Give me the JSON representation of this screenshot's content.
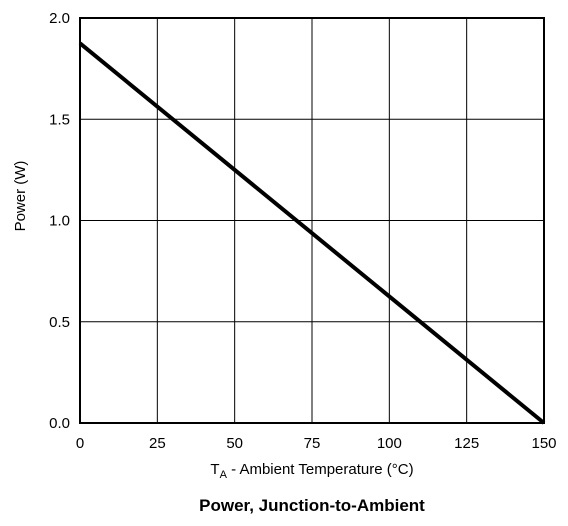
{
  "chart_data": {
    "type": "line",
    "title": "Power, Junction-to-Ambient",
    "xlabel": {
      "main": "T",
      "subscript": "A",
      "rest": " - Ambient Temperature (°C)"
    },
    "ylabel": "Power (W)",
    "xlim": [
      0,
      150
    ],
    "ylim": [
      0,
      2.0
    ],
    "x_ticks": [
      0,
      25,
      50,
      75,
      100,
      125,
      150
    ],
    "y_ticks": [
      0.0,
      0.5,
      1.0,
      1.5,
      2.0
    ],
    "x_tick_labels": [
      "0",
      "25",
      "50",
      "75",
      "100",
      "125",
      "150"
    ],
    "y_tick_labels": [
      "0.0",
      "0.5",
      "1.0",
      "1.5",
      "2.0"
    ],
    "grid": true,
    "legend": "none",
    "series": [
      {
        "x": [
          0,
          150
        ],
        "y": [
          1.875,
          0.0
        ],
        "color": "#000000"
      }
    ]
  }
}
